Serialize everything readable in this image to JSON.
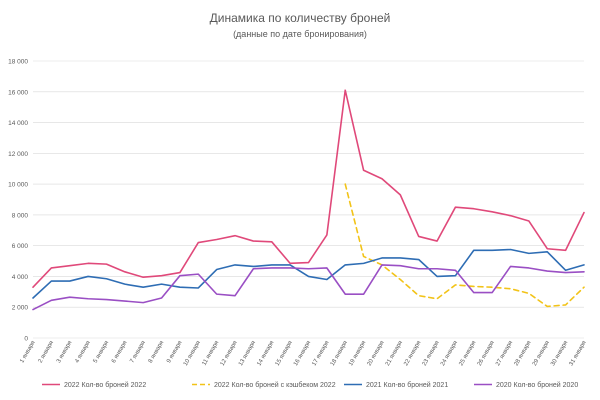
{
  "chart_data": {
    "type": "line",
    "title": "Динамика по количеству броней",
    "subtitle": "(данные по дате бронирования)",
    "xlabel": "",
    "ylabel": "",
    "ylim": [
      0,
      18000
    ],
    "y_ticks": [
      0,
      2000,
      4000,
      6000,
      8000,
      10000,
      12000,
      14000,
      16000,
      18000
    ],
    "y_tick_labels": [
      "0",
      "2 000",
      "4 000",
      "6 000",
      "8 000",
      "10 000",
      "12 000",
      "14 000",
      "16 000",
      "18 000"
    ],
    "grid": true,
    "legend_position": "bottom",
    "categories": [
      "1 января",
      "2 января",
      "3 января",
      "4 января",
      "5 января",
      "6 января",
      "7 января",
      "8 января",
      "9 января",
      "10 января",
      "11 января",
      "12 января",
      "13 января",
      "14 января",
      "15 января",
      "16 января",
      "17 января",
      "18 января",
      "19 января",
      "20 января",
      "21 января",
      "22 января",
      "23 января",
      "24 января",
      "25 января",
      "26 января",
      "27 января",
      "28 января",
      "29 января",
      "30 января",
      "31 января"
    ],
    "series": [
      {
        "name": "2022 Кол-во броней 2022",
        "color": "#e0497a",
        "dash": false,
        "values": [
          3300,
          4550,
          4700,
          4850,
          4800,
          4300,
          3950,
          4050,
          4250,
          6200,
          6400,
          6650,
          6300,
          6250,
          4850,
          4900,
          6700,
          16100,
          10900,
          10350,
          9300,
          6600,
          6300,
          8500,
          8400,
          8200,
          7950,
          7600,
          5800,
          5700,
          8150
        ]
      },
      {
        "name": "2022 Кол-во броней с кэшбеком 2022",
        "color": "#f2c318",
        "dash": true,
        "values": [
          null,
          null,
          null,
          null,
          null,
          null,
          null,
          null,
          null,
          null,
          null,
          null,
          null,
          null,
          null,
          null,
          null,
          10000,
          5300,
          4750,
          3800,
          2750,
          2550,
          3450,
          3350,
          3300,
          3200,
          2900,
          2050,
          2150,
          3300
        ]
      },
      {
        "name": "2021 Кол-во броней 2021",
        "color": "#2e6db4",
        "dash": false,
        "values": [
          2600,
          3700,
          3700,
          4000,
          3850,
          3500,
          3300,
          3500,
          3300,
          3250,
          4450,
          4750,
          4650,
          4750,
          4750,
          4000,
          3800,
          4750,
          4850,
          5200,
          5200,
          5100,
          4000,
          4050,
          5700,
          5700,
          5750,
          5500,
          5600,
          4400,
          4750
        ]
      },
      {
        "name": "2020 Кол-во броней 2020",
        "color": "#9a4fc4",
        "dash": false,
        "values": [
          1850,
          2450,
          2650,
          2550,
          2500,
          2400,
          2300,
          2600,
          4050,
          4150,
          2850,
          2750,
          4500,
          4550,
          4550,
          4500,
          4550,
          2850,
          2850,
          4750,
          4700,
          4500,
          4500,
          4400,
          2950,
          2950,
          4650,
          4550,
          4350,
          4250,
          4300
        ]
      }
    ]
  }
}
